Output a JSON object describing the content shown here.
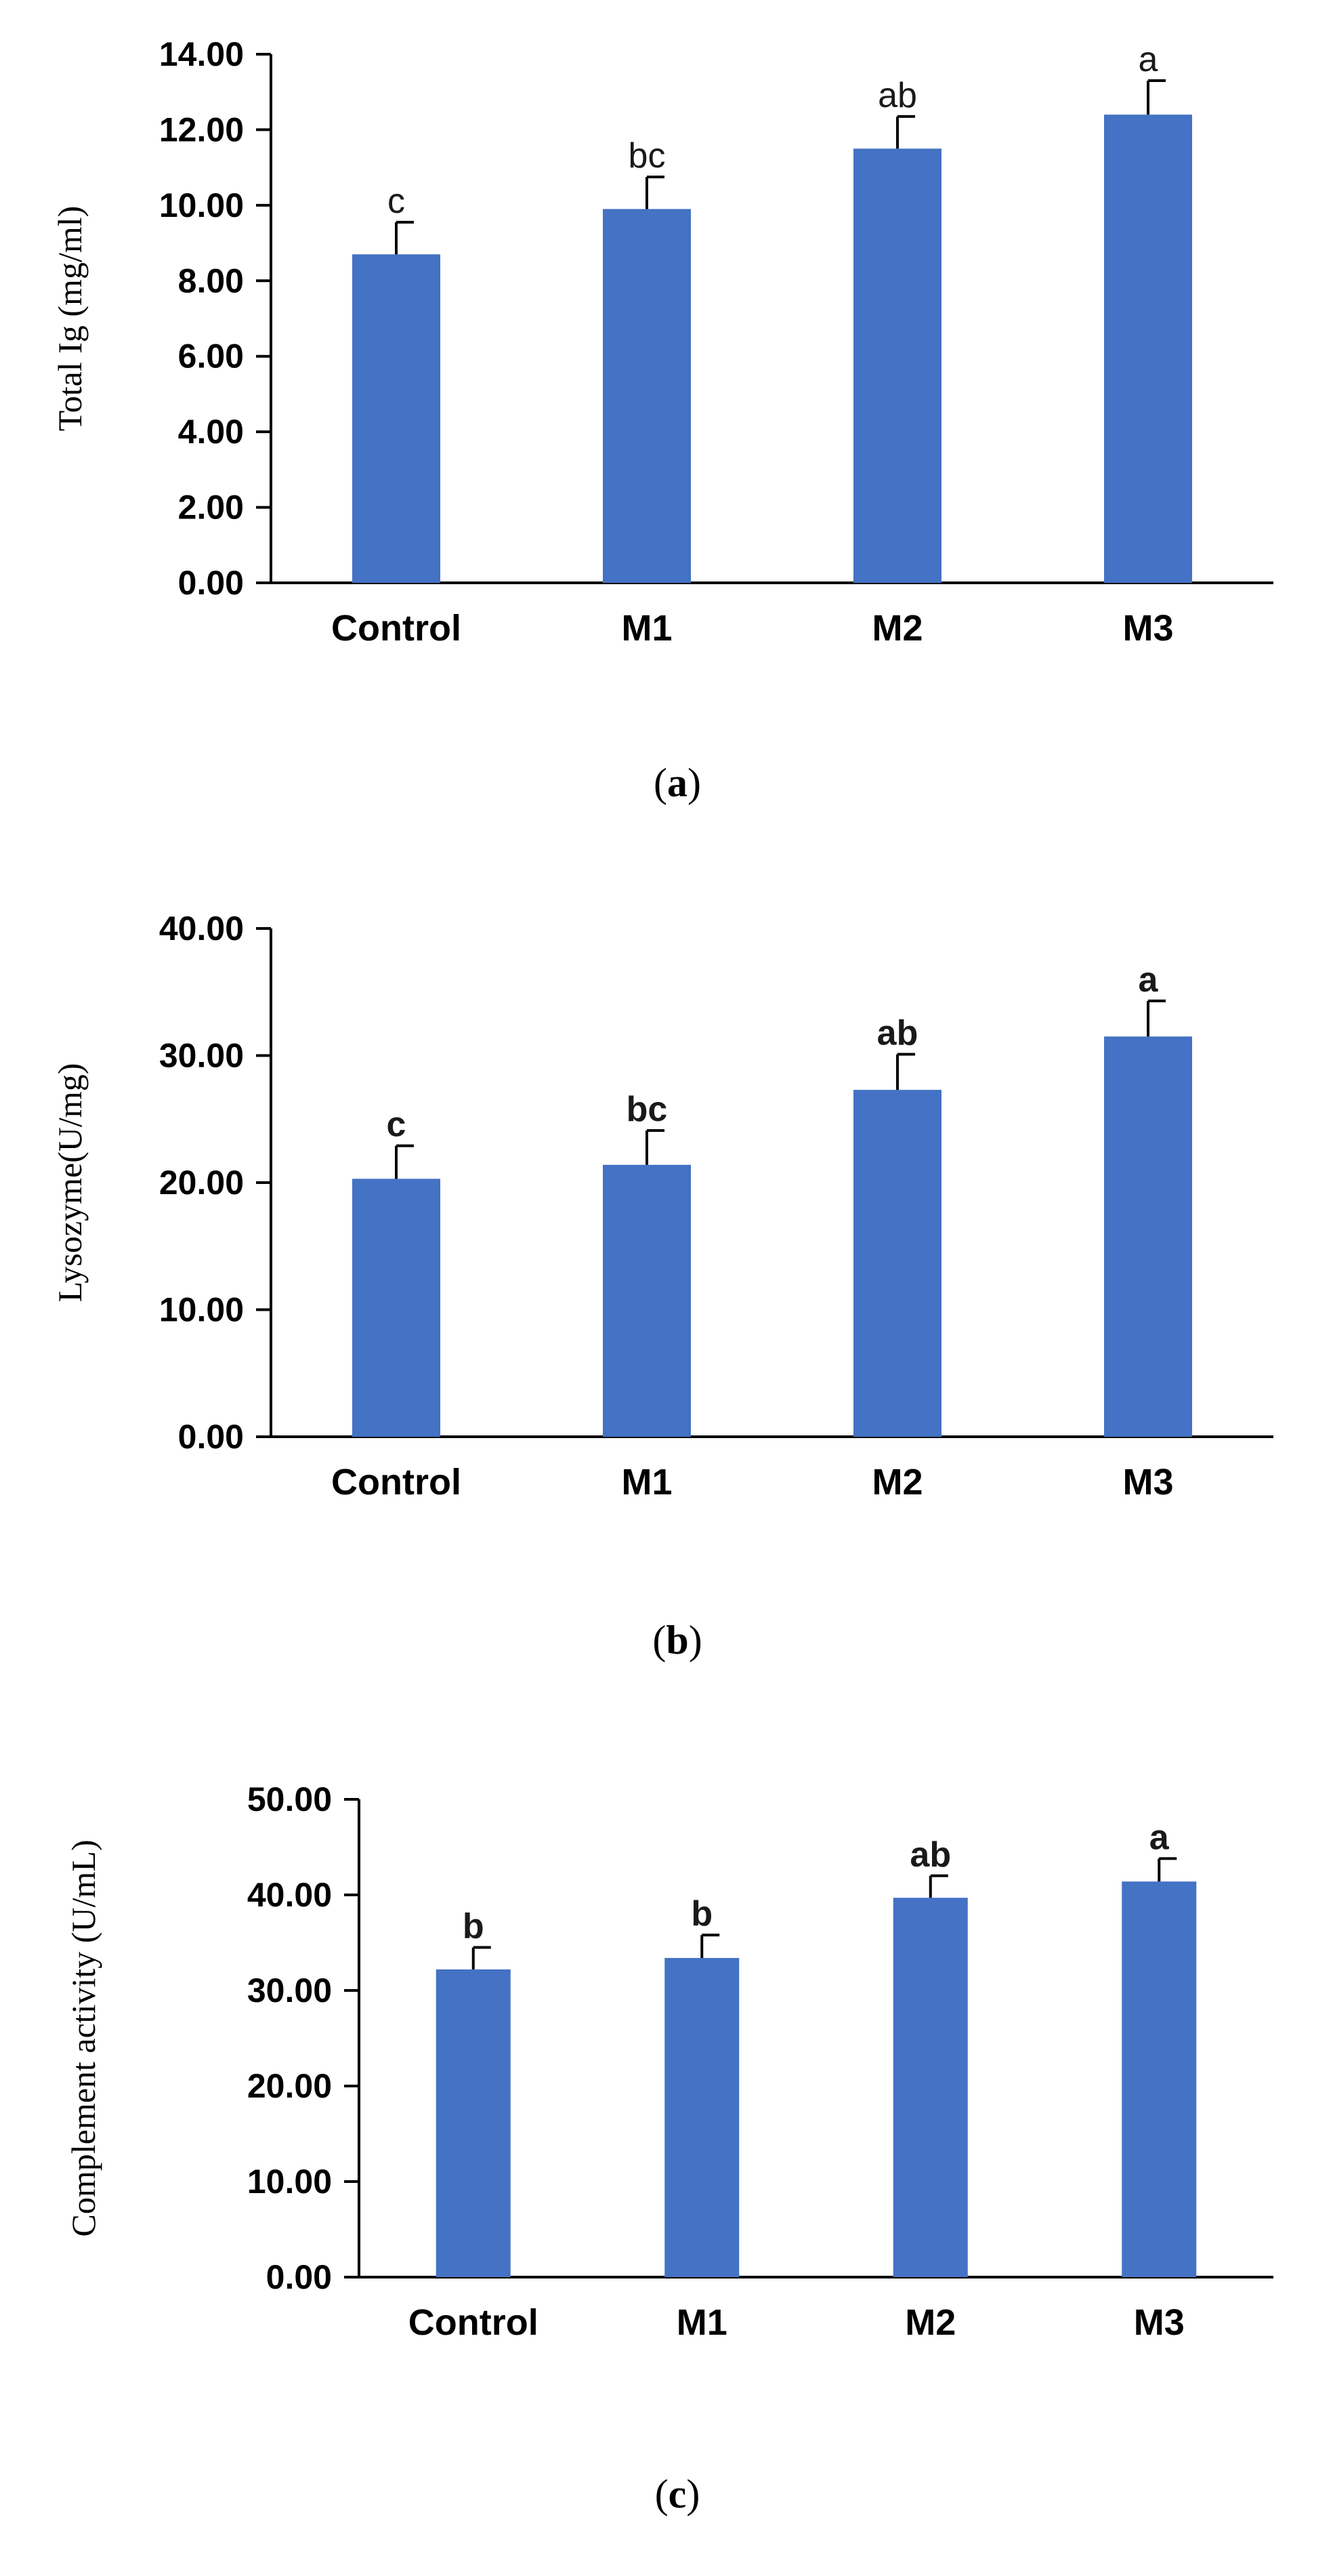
{
  "colors": {
    "bar": "#4472c4",
    "axis": "#000000",
    "error_bar": "#000000"
  },
  "chart_data": [
    {
      "type": "bar",
      "caption_open": "(",
      "caption_letter": "a",
      "caption_close": ")",
      "ylabel": "Total Ig (mg/ml)",
      "categories": [
        "Control",
        "M1",
        "M2",
        "M3"
      ],
      "values": [
        8.7,
        9.9,
        11.5,
        12.4
      ],
      "errors": [
        0.85,
        0.85,
        0.85,
        0.9
      ],
      "letters": [
        "c",
        "bc",
        "ab",
        "a"
      ],
      "letters_bold": false,
      "ylim": [
        0,
        14
      ],
      "yticks": [
        "0.00",
        "2.00",
        "4.00",
        "6.00",
        "8.00",
        "10.00",
        "12.00",
        "14.00"
      ]
    },
    {
      "type": "bar",
      "caption_open": "(",
      "caption_letter": "b",
      "caption_close": ")",
      "ylabel": "Lysozyme(U/mg)",
      "categories": [
        "Control",
        "M1",
        "M2",
        "M3"
      ],
      "values": [
        20.3,
        21.4,
        27.3,
        31.5
      ],
      "errors": [
        2.6,
        2.7,
        2.8,
        2.8
      ],
      "letters": [
        "c",
        "bc",
        "ab",
        "a"
      ],
      "letters_bold": true,
      "ylim": [
        0,
        40
      ],
      "yticks": [
        "0.00",
        "10.00",
        "20.00",
        "30.00",
        "40.00"
      ]
    },
    {
      "type": "bar",
      "caption_open": "(",
      "caption_letter": "c",
      "caption_close": ")",
      "ylabel": "Complement activity (U/mL)",
      "categories": [
        "Control",
        "M1",
        "M2",
        "M3"
      ],
      "values": [
        32.2,
        33.4,
        39.7,
        41.4
      ],
      "errors": [
        2.3,
        2.4,
        2.3,
        2.4
      ],
      "letters": [
        "b",
        "b",
        "ab",
        "a"
      ],
      "letters_bold": true,
      "ylim": [
        0,
        50
      ],
      "yticks": [
        "0.00",
        "10.00",
        "20.00",
        "30.00",
        "40.00",
        "50.00"
      ]
    }
  ]
}
